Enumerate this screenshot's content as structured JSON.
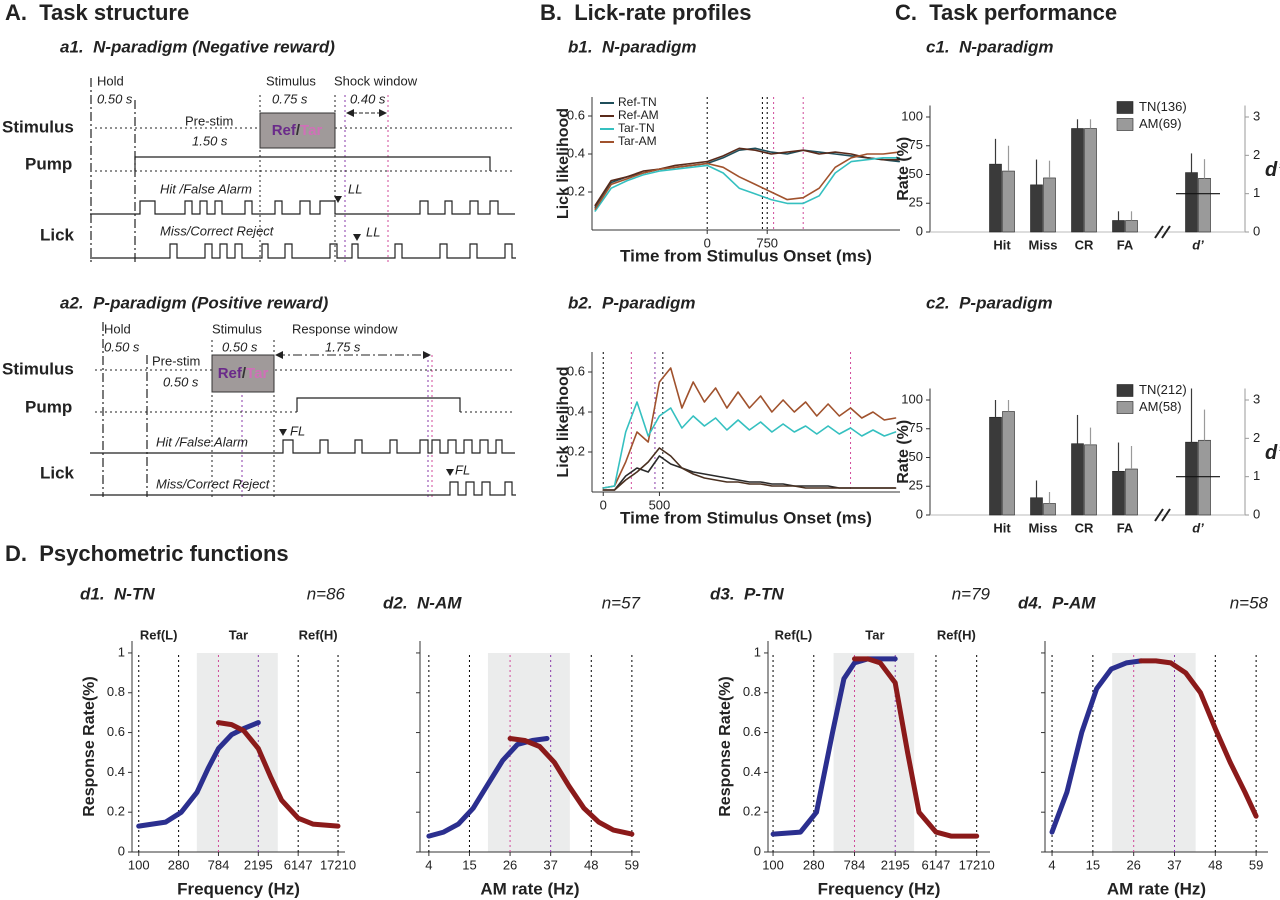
{
  "panel_titles": {
    "A": "A.  Task structure",
    "B": "B.  Lick-rate profiles",
    "C": "C.  Task performance",
    "D": "D.  Psychometric functions"
  },
  "task_structure": {
    "a1": {
      "title": "a1.  N-paradigm (Negative reward)",
      "rows": [
        "Stimulus",
        "Pump",
        "Lick"
      ],
      "hold": "Hold",
      "hold_dur": "0.50 s",
      "stimulus": "Stimulus",
      "stim_dur": "0.75 s",
      "window": "Shock window",
      "window_dur": "0.40 s",
      "prestim": "Pre-stim",
      "prestim_dur": "1.50 s",
      "ref": "Ref",
      "slash": "/",
      "tar": "Tar",
      "hit": "Hit /False Alarm",
      "miss": "Miss/Correct Reject",
      "hit_mark": "LL",
      "miss_mark": "LL"
    },
    "a2": {
      "title": "a2.  P-paradigm (Positive reward)",
      "rows": [
        "Stimulus",
        "Pump",
        "Lick"
      ],
      "hold": "Hold",
      "hold_dur": "0.50 s",
      "stimulus": "Stimulus",
      "stim_dur": "0.50 s",
      "window": "Response window",
      "window_dur": "1.75 s",
      "prestim": "Pre-stim",
      "prestim_dur": "0.50 s",
      "ref": "Ref",
      "slash": "/",
      "tar": "Tar",
      "hit": "Hit /False Alarm",
      "miss": "Miss/Correct Reject",
      "hit_mark": "FL",
      "miss_mark": "FL"
    }
  },
  "chart_data": [
    {
      "type": "line",
      "title": "b1.  N-paradigm",
      "xlabel": "Time from Stimulus Onset (ms)",
      "ylabel": "Lick likelihood",
      "x": [
        -1400,
        -1200,
        -1000,
        -800,
        -600,
        -400,
        -200,
        0,
        200,
        400,
        600,
        800,
        1000,
        1200,
        1400,
        1600,
        1800,
        2000,
        2200,
        2400
      ],
      "xlim": [
        -1440,
        2410
      ],
      "xticks": [
        0,
        750
      ],
      "ylim": [
        0,
        0.7
      ],
      "yticks": [
        0.2,
        0.4,
        0.6
      ],
      "markers": [
        {
          "x": 0,
          "color": "#000000"
        },
        {
          "x": 690,
          "color": "#000000"
        },
        {
          "x": 750,
          "color": "#000000"
        },
        {
          "x": 830,
          "color": "#d04a9a"
        },
        {
          "x": 1200,
          "color": "#d04a9a"
        }
      ],
      "series": [
        {
          "name": "Ref-TN",
          "color": "#1f4e5a",
          "values": [
            0.12,
            0.25,
            0.28,
            0.3,
            0.32,
            0.33,
            0.34,
            0.35,
            0.38,
            0.42,
            0.43,
            0.41,
            0.4,
            0.42,
            0.41,
            0.4,
            0.39,
            0.38,
            0.37,
            0.36
          ]
        },
        {
          "name": "Ref-AM",
          "color": "#5a2a1a",
          "values": [
            0.13,
            0.26,
            0.28,
            0.31,
            0.32,
            0.34,
            0.35,
            0.36,
            0.39,
            0.43,
            0.42,
            0.4,
            0.41,
            0.42,
            0.4,
            0.41,
            0.4,
            0.38,
            0.37,
            0.37
          ]
        },
        {
          "name": "Tar-TN",
          "color": "#35c0c0",
          "values": [
            0.1,
            0.22,
            0.26,
            0.29,
            0.31,
            0.32,
            0.33,
            0.34,
            0.3,
            0.22,
            0.19,
            0.16,
            0.14,
            0.14,
            0.18,
            0.3,
            0.36,
            0.37,
            0.38,
            0.38
          ]
        },
        {
          "name": "Tar-AM",
          "color": "#a0522d",
          "values": [
            0.11,
            0.24,
            0.27,
            0.3,
            0.32,
            0.33,
            0.34,
            0.35,
            0.33,
            0.28,
            0.24,
            0.2,
            0.16,
            0.17,
            0.22,
            0.33,
            0.38,
            0.4,
            0.4,
            0.41
          ]
        }
      ]
    },
    {
      "type": "line",
      "title": "b2.  P-paradigm",
      "xlabel": "Time from Stimulus Onset (ms)",
      "ylabel": "Lick likelihood",
      "x": [
        0,
        100,
        200,
        300,
        400,
        500,
        600,
        700,
        800,
        900,
        1000,
        1100,
        1200,
        1300,
        1400,
        1500,
        1600,
        1700,
        1800,
        1900,
        2000,
        2100,
        2200,
        2300,
        2400,
        2500,
        2600
      ],
      "xlim": [
        -100,
        2640
      ],
      "xticks": [
        0,
        500
      ],
      "ylim": [
        0,
        0.7
      ],
      "yticks": [
        0.2,
        0.4,
        0.6
      ],
      "markers": [
        {
          "x": 0,
          "color": "#000000"
        },
        {
          "x": 250,
          "color": "#d04a9a"
        },
        {
          "x": 460,
          "color": "#8a3aa8"
        },
        {
          "x": 530,
          "color": "#000000"
        },
        {
          "x": 2200,
          "color": "#d04a9a"
        }
      ],
      "series": [
        {
          "color": "#a0522d",
          "values": [
            0.02,
            0.03,
            0.15,
            0.3,
            0.25,
            0.55,
            0.62,
            0.42,
            0.55,
            0.45,
            0.52,
            0.42,
            0.5,
            0.42,
            0.48,
            0.4,
            0.46,
            0.4,
            0.45,
            0.38,
            0.44,
            0.38,
            0.42,
            0.37,
            0.4,
            0.36,
            0.37
          ]
        },
        {
          "color": "#35c0c0",
          "values": [
            0.02,
            0.03,
            0.3,
            0.45,
            0.28,
            0.38,
            0.42,
            0.32,
            0.38,
            0.33,
            0.37,
            0.31,
            0.36,
            0.31,
            0.35,
            0.3,
            0.34,
            0.3,
            0.33,
            0.29,
            0.33,
            0.29,
            0.32,
            0.28,
            0.31,
            0.28,
            0.3
          ]
        },
        {
          "color": "#2a2a2a",
          "values": [
            0.01,
            0.01,
            0.08,
            0.12,
            0.1,
            0.18,
            0.14,
            0.12,
            0.1,
            0.09,
            0.08,
            0.07,
            0.06,
            0.05,
            0.05,
            0.04,
            0.04,
            0.03,
            0.03,
            0.03,
            0.03,
            0.02,
            0.02,
            0.02,
            0.02,
            0.02,
            0.02
          ]
        },
        {
          "color": "#4a3020",
          "values": [
            0.01,
            0.01,
            0.06,
            0.1,
            0.15,
            0.22,
            0.18,
            0.12,
            0.09,
            0.07,
            0.06,
            0.05,
            0.05,
            0.04,
            0.04,
            0.03,
            0.03,
            0.03,
            0.02,
            0.02,
            0.02,
            0.02,
            0.02,
            0.02,
            0.02,
            0.02,
            0.02
          ]
        }
      ]
    },
    {
      "type": "bar",
      "title": "c1.  N-paradigm",
      "ylabel": "Rate (%)",
      "y2label": "d’",
      "categories": [
        "Hit",
        "Miss",
        "CR",
        "FA"
      ],
      "ylim": [
        0,
        110
      ],
      "yticks": [
        0,
        25,
        50,
        75,
        100
      ],
      "y2lim": [
        0,
        3.3
      ],
      "y2ticks": [
        0,
        1,
        2,
        3
      ],
      "series": [
        {
          "name": "TN(136)",
          "color": "#3a3a3a",
          "values": [
            59,
            41,
            90,
            10
          ],
          "errors": [
            22,
            22,
            8,
            8
          ]
        },
        {
          "name": "AM(69)",
          "color": "#9a9a9a",
          "values": [
            53,
            47,
            90,
            10
          ],
          "errors": [
            22,
            15,
            8,
            8
          ]
        }
      ],
      "dprime": {
        "category": "d’",
        "values": [
          1.55,
          1.4
        ],
        "errors": [
          0.5,
          0.5
        ],
        "reference": 1
      }
    },
    {
      "type": "bar",
      "title": "c2.  P-paradigm",
      "ylabel": "Rate (%)",
      "y2label": "d’",
      "categories": [
        "Hit",
        "Miss",
        "CR",
        "FA"
      ],
      "ylim": [
        0,
        110
      ],
      "yticks": [
        0,
        25,
        50,
        75,
        100
      ],
      "y2lim": [
        0,
        3.3
      ],
      "y2ticks": [
        0,
        1,
        2,
        3
      ],
      "series": [
        {
          "name": "TN(212)",
          "color": "#3a3a3a",
          "values": [
            85,
            15,
            62,
            38
          ],
          "errors": [
            15,
            15,
            25,
            25
          ]
        },
        {
          "name": "AM(58)",
          "color": "#9a9a9a",
          "values": [
            90,
            10,
            61,
            40
          ],
          "errors": [
            10,
            10,
            15,
            20
          ]
        }
      ],
      "dprime": {
        "category": "d’",
        "values": [
          1.9,
          1.95
        ],
        "errors": [
          1.4,
          0.8
        ],
        "reference": 1
      }
    },
    {
      "type": "line",
      "title": "d1.  N-TN",
      "annotation": "n=86",
      "xlabel": "Frequency (Hz)",
      "ylabel": "Response Rate(%)",
      "log_x": true,
      "xlim": [
        84,
        20600
      ],
      "xticks": [
        100,
        280,
        784,
        2195,
        6147,
        17210
      ],
      "xgrid_colors": [
        "#000000",
        "#000000",
        "#d04a9a",
        "#8a3aa8",
        "#000000",
        "#000000"
      ],
      "ylim": [
        0,
        1.06
      ],
      "yticks": [
        0,
        0.2,
        0.4,
        0.6,
        0.8,
        1
      ],
      "shade": [
        448,
        3630
      ],
      "region_labels": [
        "Ref(L)",
        "Tar",
        "Ref(H)"
      ],
      "region_colors": [
        "#5b2a6e",
        "#c25fc2",
        "#5b2a6e"
      ],
      "series": [
        {
          "color": "#2b2f8f",
          "x": [
            100,
            200,
            300,
            450,
            600,
            784,
            1100,
            1500,
            2195
          ],
          "values": [
            0.13,
            0.15,
            0.2,
            0.3,
            0.42,
            0.52,
            0.59,
            0.62,
            0.65
          ]
        },
        {
          "color": "#8b1a1a",
          "x": [
            784,
            1100,
            1500,
            2195,
            3000,
            4000,
            6147,
            9000,
            17210
          ],
          "values": [
            0.65,
            0.64,
            0.61,
            0.52,
            0.38,
            0.26,
            0.17,
            0.14,
            0.13
          ]
        }
      ]
    },
    {
      "type": "line",
      "title": "d2.  N-AM",
      "annotation": "n=57",
      "xlabel": "AM rate (Hz)",
      "ytick_labels": false,
      "xlim": [
        1.6,
        61.2
      ],
      "xticks": [
        4,
        15,
        26,
        37,
        48,
        59
      ],
      "xgrid_colors": [
        "#000000",
        "#000000",
        "#d04a9a",
        "#8a3aa8",
        "#000000",
        "#000000"
      ],
      "ylim": [
        0,
        1.06
      ],
      "yticks": [
        0,
        0.2,
        0.4,
        0.6,
        0.8,
        1
      ],
      "shade": [
        20,
        42.2
      ],
      "series": [
        {
          "color": "#2b2f8f",
          "x": [
            4,
            8,
            12,
            16,
            20,
            24,
            28,
            32,
            36
          ],
          "values": [
            0.08,
            0.1,
            0.14,
            0.22,
            0.34,
            0.46,
            0.54,
            0.56,
            0.57
          ]
        },
        {
          "color": "#8b1a1a",
          "x": [
            26,
            30,
            34,
            38,
            42,
            46,
            50,
            54,
            59
          ],
          "values": [
            0.57,
            0.56,
            0.53,
            0.45,
            0.33,
            0.22,
            0.15,
            0.11,
            0.09
          ]
        }
      ]
    },
    {
      "type": "line",
      "title": "d3.  P-TN",
      "annotation": "n=79",
      "xlabel": "Frequency (Hz)",
      "ylabel": "Response Rate(%)",
      "log_x": true,
      "xlim": [
        88,
        24100
      ],
      "xticks": [
        100,
        280,
        784,
        2195,
        6147,
        17210
      ],
      "xgrid_colors": [
        "#000000",
        "#000000",
        "#d04a9a",
        "#8a3aa8",
        "#000000",
        "#000000"
      ],
      "ylim": [
        0,
        1.06
      ],
      "yticks": [
        0,
        0.2,
        0.4,
        0.6,
        0.8,
        1
      ],
      "shade": [
        462,
        3544
      ],
      "region_labels": [
        "Ref(L)",
        "Tar",
        "Ref(H)"
      ],
      "region_colors": [
        "#5b2a6e",
        "#c25fc2",
        "#5b2a6e"
      ],
      "series": [
        {
          "color": "#2b2f8f",
          "x": [
            100,
            200,
            300,
            450,
            600,
            784,
            1100,
            1500,
            2195
          ],
          "values": [
            0.09,
            0.1,
            0.2,
            0.6,
            0.87,
            0.95,
            0.97,
            0.97,
            0.97
          ]
        },
        {
          "color": "#8b1a1a",
          "x": [
            784,
            1100,
            1500,
            2195,
            3000,
            4000,
            6147,
            9000,
            17210
          ],
          "values": [
            0.97,
            0.97,
            0.95,
            0.85,
            0.5,
            0.2,
            0.1,
            0.08,
            0.08
          ]
        }
      ]
    },
    {
      "type": "line",
      "title": "d4.  P-AM",
      "annotation": "n=58",
      "xlabel": "AM rate (Hz)",
      "ytick_labels": false,
      "xlim": [
        2.1,
        62.2
      ],
      "xticks": [
        4,
        15,
        26,
        37,
        48,
        59
      ],
      "xgrid_colors": [
        "#000000",
        "#000000",
        "#d04a9a",
        "#8a3aa8",
        "#000000",
        "#000000"
      ],
      "ylim": [
        0,
        1.06
      ],
      "yticks": [
        0,
        0.2,
        0.4,
        0.6,
        0.8,
        1
      ],
      "shade": [
        20.2,
        42.7
      ],
      "series": [
        {
          "color": "#2b2f8f",
          "x": [
            4,
            8,
            12,
            16,
            20,
            24,
            28
          ],
          "values": [
            0.1,
            0.3,
            0.6,
            0.82,
            0.92,
            0.95,
            0.96
          ]
        },
        {
          "color": "#8b1a1a",
          "x": [
            28,
            32,
            36,
            40,
            44,
            48,
            52,
            56,
            59
          ],
          "values": [
            0.96,
            0.96,
            0.95,
            0.9,
            0.8,
            0.62,
            0.45,
            0.3,
            0.18
          ]
        }
      ]
    }
  ]
}
